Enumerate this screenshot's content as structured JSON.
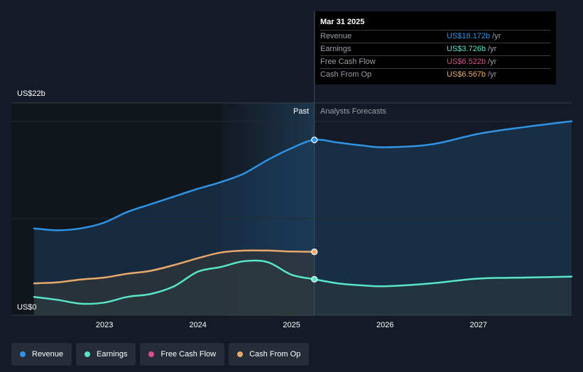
{
  "chart_data": {
    "type": "line",
    "y_unit_prefix": "US$",
    "y_top_label": "US$22b",
    "y_bottom_label": "US$0",
    "ylim": [
      0,
      22
    ],
    "xlim": [
      "2022-04-01",
      "2027-12-31"
    ],
    "x_ticks": [
      {
        "label": "2023",
        "date": "2023-01-01"
      },
      {
        "label": "2024",
        "date": "2024-01-01"
      },
      {
        "label": "2025",
        "date": "2025-01-01"
      },
      {
        "label": "2026",
        "date": "2026-01-01"
      },
      {
        "label": "2027",
        "date": "2027-01-01"
      }
    ],
    "past_label": "Past",
    "forecast_label": "Analysts Forecasts",
    "divider_date": "2025-03-31",
    "series": [
      {
        "name": "Revenue",
        "color": "#2f94e6",
        "area": true,
        "area_color": "#1b3e5e",
        "points": [
          [
            "2022-04-01",
            9.0
          ],
          [
            "2022-06-30",
            8.8
          ],
          [
            "2022-09-30",
            9.0
          ],
          [
            "2022-12-31",
            9.6
          ],
          [
            "2023-03-31",
            10.7
          ],
          [
            "2023-06-30",
            11.5
          ],
          [
            "2023-09-30",
            12.3
          ],
          [
            "2023-12-31",
            13.1
          ],
          [
            "2024-03-31",
            13.8
          ],
          [
            "2024-06-30",
            14.7
          ],
          [
            "2024-09-30",
            16.1
          ],
          [
            "2024-12-31",
            17.3
          ],
          [
            "2025-03-31",
            18.172
          ],
          [
            "2025-06-30",
            17.9
          ],
          [
            "2025-09-30",
            17.6
          ],
          [
            "2025-12-31",
            17.4
          ],
          [
            "2026-06-30",
            17.7
          ],
          [
            "2027-01-01",
            18.8
          ],
          [
            "2027-06-30",
            19.5
          ],
          [
            "2027-12-31",
            20.1
          ]
        ]
      },
      {
        "name": "Earnings",
        "color": "#58e5c8",
        "area": true,
        "area_color": "#2a3a3c",
        "points": [
          [
            "2022-04-01",
            1.9
          ],
          [
            "2022-06-30",
            1.6
          ],
          [
            "2022-09-30",
            1.2
          ],
          [
            "2022-12-31",
            1.3
          ],
          [
            "2023-03-31",
            1.9
          ],
          [
            "2023-06-30",
            2.2
          ],
          [
            "2023-09-30",
            3.0
          ],
          [
            "2023-12-31",
            4.5
          ],
          [
            "2024-03-31",
            5.0
          ],
          [
            "2024-06-30",
            5.6
          ],
          [
            "2024-09-30",
            5.5
          ],
          [
            "2024-12-31",
            4.2
          ],
          [
            "2025-03-31",
            3.726
          ],
          [
            "2025-06-30",
            3.3
          ],
          [
            "2025-09-30",
            3.1
          ],
          [
            "2025-12-31",
            3.0
          ],
          [
            "2026-06-30",
            3.3
          ],
          [
            "2027-01-01",
            3.8
          ],
          [
            "2027-06-30",
            3.9
          ],
          [
            "2027-12-31",
            4.0
          ]
        ]
      },
      {
        "name": "Free Cash Flow",
        "color": "#d94f8a",
        "area": false,
        "points": []
      },
      {
        "name": "Cash From Op",
        "color": "#e8a96a",
        "area": true,
        "area_color": "#3a3634",
        "points": [
          [
            "2022-04-01",
            3.3
          ],
          [
            "2022-06-30",
            3.4
          ],
          [
            "2022-09-30",
            3.7
          ],
          [
            "2022-12-31",
            3.9
          ],
          [
            "2023-03-31",
            4.3
          ],
          [
            "2023-06-30",
            4.6
          ],
          [
            "2023-09-30",
            5.2
          ],
          [
            "2023-12-31",
            5.9
          ],
          [
            "2024-03-31",
            6.5
          ],
          [
            "2024-06-30",
            6.7
          ],
          [
            "2024-09-30",
            6.7
          ],
          [
            "2024-12-31",
            6.6
          ],
          [
            "2025-03-31",
            6.567
          ]
        ]
      }
    ],
    "legend_position": "bottom-left",
    "grid": false
  },
  "tooltip": {
    "date": "Mar 31 2025",
    "rows": [
      {
        "label": "Revenue",
        "value": "US$18.172b",
        "unit": "/yr",
        "color": "#2f94e6"
      },
      {
        "label": "Earnings",
        "value": "US$3.726b",
        "unit": "/yr",
        "color": "#58e5c8"
      },
      {
        "label": "Free Cash Flow",
        "value": "US$6.522b",
        "unit": "/yr",
        "color": "#d94f8a"
      },
      {
        "label": "Cash From Op",
        "value": "US$6.567b",
        "unit": "/yr",
        "color": "#e8a96a"
      }
    ]
  },
  "legend": [
    {
      "label": "Revenue",
      "color": "#2f94e6"
    },
    {
      "label": "Earnings",
      "color": "#58e5c8"
    },
    {
      "label": "Free Cash Flow",
      "color": "#d94f8a"
    },
    {
      "label": "Cash From Op",
      "color": "#e8a96a"
    }
  ]
}
